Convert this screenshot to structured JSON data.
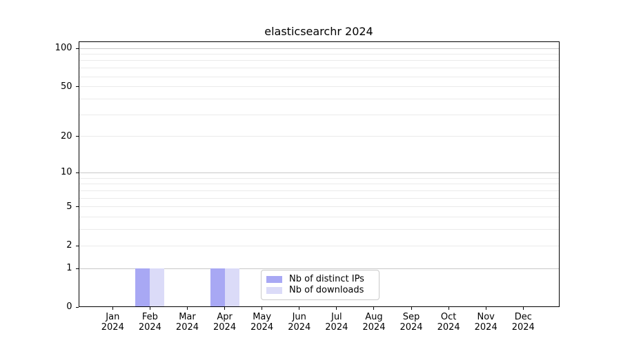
{
  "chart_data": {
    "type": "bar",
    "title": "elasticsearchr 2024",
    "categories": [
      "Jan",
      "Feb",
      "Mar",
      "Apr",
      "May",
      "Jun",
      "Jul",
      "Aug",
      "Sep",
      "Oct",
      "Nov",
      "Dec"
    ],
    "category_year": "2024",
    "series": [
      {
        "name": "Nb of distinct IPs",
        "color": "#a8a8f4",
        "values": [
          0,
          1,
          0,
          1,
          0,
          0,
          0,
          0,
          0,
          0,
          0,
          0
        ]
      },
      {
        "name": "Nb of downloads",
        "color": "#dbdbf8",
        "values": [
          0,
          1,
          0,
          1,
          0,
          0,
          0,
          0,
          0,
          0,
          0,
          0
        ]
      }
    ],
    "yscale": "log1p",
    "ylim": [
      0,
      113
    ],
    "ytick_values": [
      0,
      1,
      2,
      5,
      10,
      20,
      50,
      100
    ],
    "ytick_labels": [
      "0",
      "1",
      "2",
      "5",
      "10",
      "20",
      "50",
      "100"
    ],
    "major_grid_values": [
      1,
      10,
      100
    ],
    "minor_grid_values": [
      2,
      3,
      4,
      5,
      6,
      7,
      8,
      9,
      20,
      30,
      40,
      50,
      60,
      70,
      80,
      90
    ],
    "legend_position": "lower center",
    "grid_on": true,
    "colors": {
      "background": "#ffffff",
      "spine": "#000000",
      "major_grid": "#c8c8c8",
      "minor_grid": "#eaeaea",
      "text": "#000000"
    }
  }
}
